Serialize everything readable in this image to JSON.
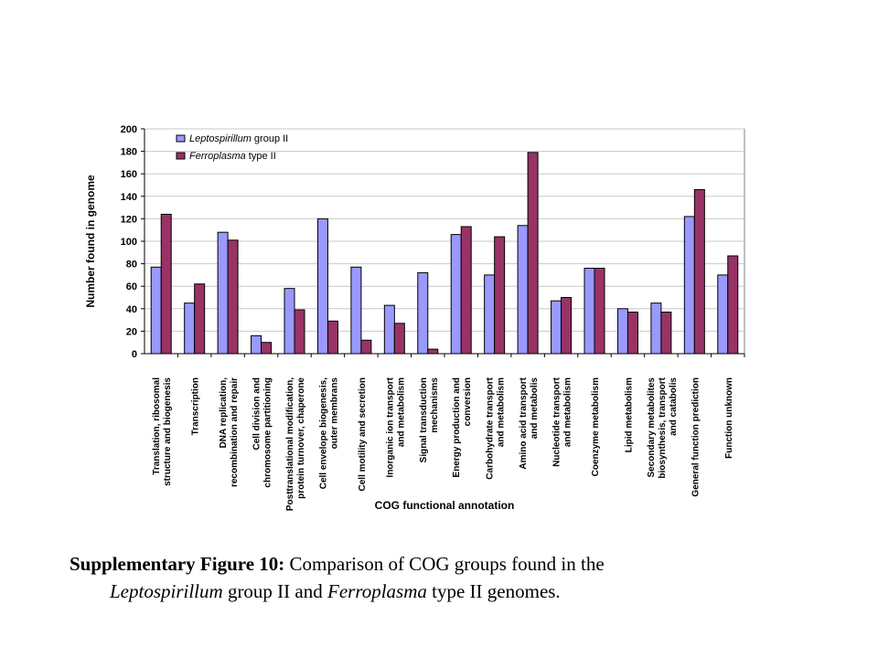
{
  "chart_data": {
    "type": "bar",
    "ylabel": "Number found in genome",
    "xlabel": "COG functional annotation",
    "ylim": [
      0,
      200
    ],
    "yticks": [
      0,
      20,
      40,
      60,
      80,
      100,
      120,
      140,
      160,
      180,
      200
    ],
    "grid": true,
    "legend_position": "top-left",
    "categories": [
      [
        "Translation, ribosomal",
        "structure and biogenesis"
      ],
      [
        "Transcription"
      ],
      [
        "DNA replication,",
        "recombination and repair"
      ],
      [
        "Cell division and",
        "chromosome partitioning"
      ],
      [
        "Posttranslational modification,",
        "protein turnover, chaperone"
      ],
      [
        "Cell envelope biogenesis,",
        "outer membrans"
      ],
      [
        "Cell motility and secretion"
      ],
      [
        "Inorganic ion transport",
        "and metabolism"
      ],
      [
        "Signal transduction",
        "mechanisms"
      ],
      [
        "Energy production and",
        "conversion"
      ],
      [
        "Carbohydrate transport",
        "and metabolism"
      ],
      [
        "Amino acid transport",
        "and metabolis"
      ],
      [
        "Nucleotide transport",
        "and metabolism"
      ],
      [
        "Coenzyme metabolism"
      ],
      [
        "Lipid metabolism"
      ],
      [
        "Secondary metabolites",
        "biosynthesis, transport",
        "and catabolis"
      ],
      [
        "General function prediction"
      ],
      [
        "Function unknown"
      ]
    ],
    "series": [
      {
        "name_italic": "Leptospirillum",
        "name_rest": " group II",
        "color": "#9999FF",
        "values": [
          77,
          45,
          108,
          16,
          58,
          120,
          77,
          43,
          72,
          106,
          70,
          114,
          47,
          76,
          40,
          45,
          122,
          70
        ]
      },
      {
        "name_italic": "Ferroplasma",
        "name_rest": " type II",
        "color": "#993366",
        "values": [
          124,
          62,
          101,
          10,
          39,
          29,
          12,
          27,
          4,
          113,
          104,
          179,
          50,
          76,
          37,
          37,
          146,
          87
        ]
      }
    ]
  },
  "caption": {
    "label": "Supplementary Figure 10:",
    "text1": " Comparison of COG groups found in the",
    "italic1": "Leptospirillum",
    "text2": " group II and ",
    "italic2": "Ferroplasma",
    "text3": " type II genomes."
  }
}
